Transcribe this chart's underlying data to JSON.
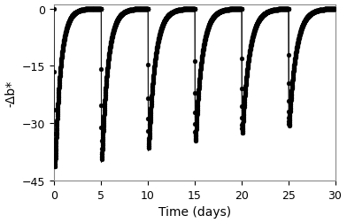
{
  "xlabel": "Time (days)",
  "ylabel": "-Δb*",
  "xlim": [
    0,
    30
  ],
  "ylim": [
    -45,
    1
  ],
  "yticks": [
    0,
    -15,
    -30,
    -45
  ],
  "xticks": [
    0,
    5,
    10,
    15,
    20,
    25,
    30
  ],
  "marker_color": "black",
  "marker_size": 3.5,
  "line_color": "black",
  "line_width": 0.5,
  "background_color": "white",
  "xlabel_fontsize": 10,
  "ylabel_fontsize": 10,
  "tick_fontsize": 9,
  "cycle_starts_days": [
    0.0,
    5.0,
    10.0,
    15.0,
    20.0,
    25.0
  ],
  "photoact_duration_days": 0.0833,
  "recovery_duration_days": 4.9167,
  "drop_depths": [
    -42.0,
    -40.0,
    -37.0,
    -35.0,
    -33.0,
    -31.0
  ],
  "measurement_interval_days": 0.010417,
  "recovery_tau": [
    0.6,
    0.65,
    0.7,
    0.7,
    0.75,
    0.75
  ],
  "last_cycle_end": 30.0
}
